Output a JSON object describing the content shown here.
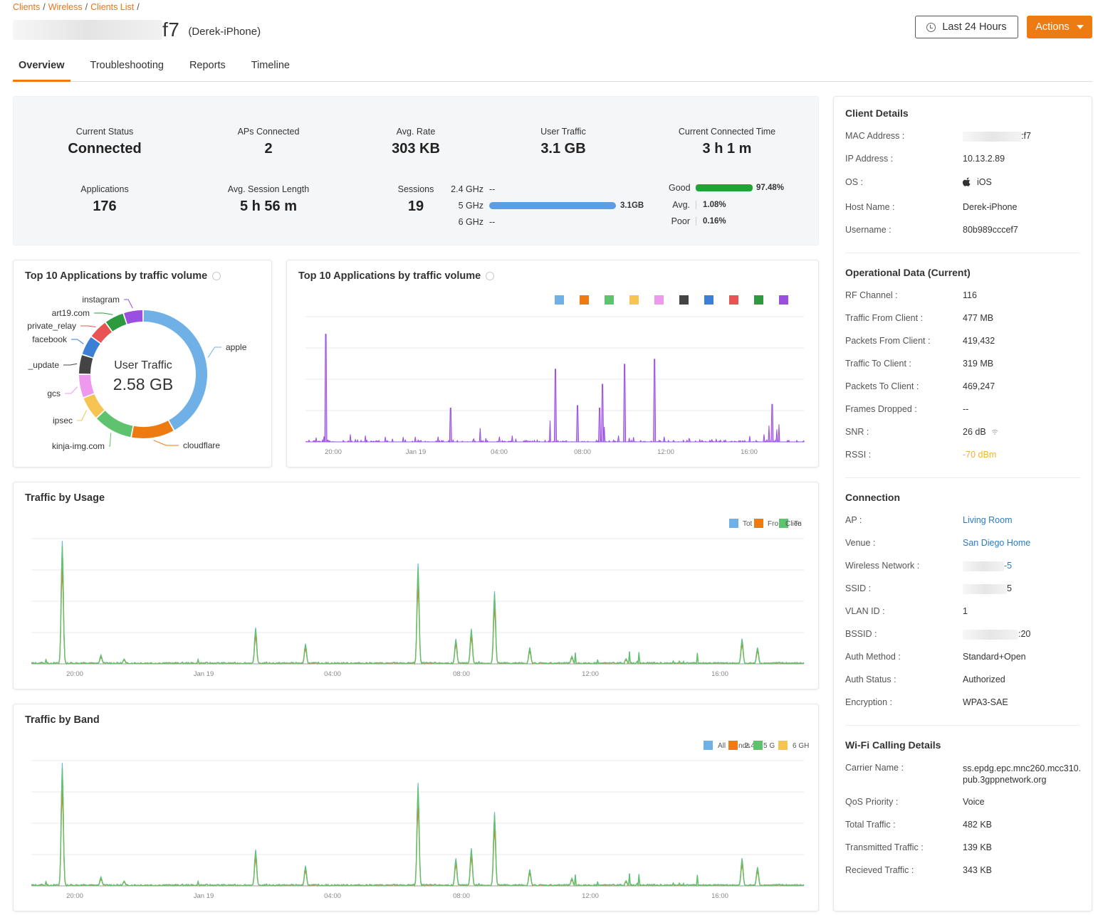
{
  "breadcrumb": {
    "items": [
      "Clients",
      "Wireless",
      "Clients List"
    ],
    "sep": "/"
  },
  "header": {
    "mac_suffix": "f7",
    "host_paren": "(Derek-iPhone)",
    "range_label": "Last 24 Hours",
    "actions_label": "Actions"
  },
  "tabs": [
    "Overview",
    "Troubleshooting",
    "Reports",
    "Timeline"
  ],
  "summary": {
    "current_status": {
      "label": "Current Status",
      "value": "Connected"
    },
    "aps_connected": {
      "label": "APs Connected",
      "value": "2"
    },
    "avg_rate": {
      "label": "Avg. Rate",
      "value": "303 KB"
    },
    "user_traffic": {
      "label": "User Traffic",
      "value": "3.1 GB"
    },
    "connected_time": {
      "label": "Current Connected Time",
      "value": "3 h 1 m"
    },
    "applications": {
      "label": "Applications",
      "value": "176"
    },
    "avg_session": {
      "label": "Avg. Session Length",
      "value": "5 h 56 m"
    },
    "sessions": {
      "label": "Sessions",
      "value": "19"
    },
    "bands": [
      {
        "name": "2.4 GHz",
        "value": "--",
        "fraction": 0
      },
      {
        "name": "5 GHz",
        "value": "3.1GB",
        "fraction": 1
      },
      {
        "name": "6 GHz",
        "value": "--",
        "fraction": 0
      }
    ],
    "quality": [
      {
        "name": "Good",
        "value": "97.48%"
      },
      {
        "name": "Avg.",
        "value": "1.08%"
      },
      {
        "name": "Poor",
        "value": "0.16%"
      }
    ]
  },
  "donut_card": {
    "title": "Top 10 Applications by traffic volume",
    "center_label": "User Traffic",
    "center_value": "2.58 GB"
  },
  "app_chart_card": {
    "title": "Top 10 Applications by traffic volume"
  },
  "usage_card": {
    "title": "Traffic by Usage",
    "legend": [
      "Tot",
      "Fro",
      "Clien",
      "Te"
    ]
  },
  "band_card": {
    "title": "Traffic by Band",
    "legend": [
      "All",
      "Ba",
      "nds",
      "2.4",
      "5 G",
      "Hz",
      "6 GH"
    ]
  },
  "colors": {
    "accent": "#ee7a12",
    "apple": "#6fb1e6",
    "cloudflare": "#ee7a12",
    "kinja": "#5fc26e",
    "ipsec": "#f5c452",
    "gcs": "#ee99ee",
    "update": "#444444",
    "facebook": "#3b7fd6",
    "private_relay": "#e85353",
    "art19": "#2e9a3f",
    "instagram": "#9b4fe0"
  },
  "chart_data": [
    {
      "type": "pie",
      "title": "Top 10 Applications by traffic volume",
      "labels": [
        "apple",
        "cloudflare",
        "kinja-img.com",
        "ipsec",
        "gcs",
        "_update",
        "facebook",
        "private_relay",
        "art19.com",
        "instagram"
      ],
      "values": [
        42,
        11,
        10,
        6,
        6,
        5,
        5,
        5,
        5,
        5
      ],
      "center": "2.58 GB"
    },
    {
      "type": "bar",
      "title": "Top 10 Applications by traffic volume",
      "x_ticks": [
        "20:00",
        "Jan 19",
        "04:00",
        "08:00",
        "12:00",
        "16:00"
      ],
      "legend_colors": [
        "#6fb1e6",
        "#ee7a12",
        "#5fc26e",
        "#f5c452",
        "#ee99ee",
        "#444444",
        "#3b7fd6",
        "#e85353",
        "#2e9a3f",
        "#9b4fe0"
      ],
      "peaks": [
        {
          "t": 0.04,
          "v": 0.86
        },
        {
          "t": 0.09,
          "v": 0.06
        },
        {
          "t": 0.12,
          "v": 0.05
        },
        {
          "t": 0.16,
          "v": 0.04
        },
        {
          "t": 0.29,
          "v": 0.27
        },
        {
          "t": 0.35,
          "v": 0.11
        },
        {
          "t": 0.49,
          "v": 0.17
        },
        {
          "t": 0.5,
          "v": 0.58
        },
        {
          "t": 0.545,
          "v": 0.29
        },
        {
          "t": 0.59,
          "v": 0.27
        },
        {
          "t": 0.595,
          "v": 0.46
        },
        {
          "t": 0.6,
          "v": 0.12
        },
        {
          "t": 0.64,
          "v": 0.62
        },
        {
          "t": 0.7,
          "v": 0.66
        },
        {
          "t": 0.72,
          "v": 0.04
        },
        {
          "t": 0.77,
          "v": 0.03
        },
        {
          "t": 0.92,
          "v": 0.06
        },
        {
          "t": 0.93,
          "v": 0.13
        },
        {
          "t": 0.935,
          "v": 0.3
        },
        {
          "t": 0.945,
          "v": 0.1
        },
        {
          "t": 0.95,
          "v": 0.14
        }
      ]
    },
    {
      "type": "line",
      "title": "Traffic by Usage",
      "x_ticks": [
        "20:00",
        "Jan 19",
        "04:00",
        "08:00",
        "12:00",
        "16:00"
      ],
      "series": [
        {
          "name": "Tot",
          "color": "#6fb1e6"
        },
        {
          "name": "Fro",
          "color": "#ee7a12"
        },
        {
          "name": "Clien",
          "color": "#5fc26e"
        }
      ],
      "peaks": [
        {
          "t": 0.04,
          "v": 0.98
        },
        {
          "t": 0.09,
          "v": 0.07
        },
        {
          "t": 0.12,
          "v": 0.04
        },
        {
          "t": 0.29,
          "v": 0.29
        },
        {
          "t": 0.355,
          "v": 0.16
        },
        {
          "t": 0.5,
          "v": 0.8
        },
        {
          "t": 0.55,
          "v": 0.2
        },
        {
          "t": 0.57,
          "v": 0.28
        },
        {
          "t": 0.6,
          "v": 0.25
        },
        {
          "t": 0.6,
          "v": 0.58
        },
        {
          "t": 0.645,
          "v": 0.13
        },
        {
          "t": 0.7,
          "v": 0.06
        },
        {
          "t": 0.77,
          "v": 0.04
        },
        {
          "t": 0.92,
          "v": 0.2
        },
        {
          "t": 0.94,
          "v": 0.13
        }
      ]
    },
    {
      "type": "line",
      "title": "Traffic by Band",
      "x_ticks": [
        "20:00",
        "Jan 19",
        "04:00",
        "08:00",
        "12:00",
        "16:00"
      ],
      "series": [
        {
          "name": "All",
          "color": "#6fb1e6"
        },
        {
          "name": "Ba",
          "color": "#ee7a12"
        },
        {
          "name": "5 G",
          "color": "#5fc26e"
        },
        {
          "name": "6 GH",
          "color": "#f5c452"
        }
      ],
      "peaks": [
        {
          "t": 0.04,
          "v": 0.98
        },
        {
          "t": 0.09,
          "v": 0.07
        },
        {
          "t": 0.12,
          "v": 0.04
        },
        {
          "t": 0.29,
          "v": 0.29
        },
        {
          "t": 0.355,
          "v": 0.16
        },
        {
          "t": 0.5,
          "v": 0.82
        },
        {
          "t": 0.55,
          "v": 0.22
        },
        {
          "t": 0.57,
          "v": 0.3
        },
        {
          "t": 0.6,
          "v": 0.25
        },
        {
          "t": 0.6,
          "v": 0.59
        },
        {
          "t": 0.645,
          "v": 0.13
        },
        {
          "t": 0.7,
          "v": 0.06
        },
        {
          "t": 0.77,
          "v": 0.04
        },
        {
          "t": 0.92,
          "v": 0.22
        },
        {
          "t": 0.94,
          "v": 0.15
        }
      ]
    }
  ],
  "client_details": {
    "title": "Client Details",
    "rows": [
      {
        "k": "MAC Address :",
        "v": ":f7"
      },
      {
        "k": "IP Address :",
        "v": "10.13.2.89"
      },
      {
        "k": "OS :",
        "v": "iOS"
      },
      {
        "k": "Host Name :",
        "v": "Derek-iPhone"
      },
      {
        "k": "Username :",
        "v": "80b989cccef7"
      }
    ]
  },
  "operational": {
    "title": "Operational Data (Current)",
    "rows": [
      {
        "k": "RF Channel :",
        "v": "116"
      },
      {
        "k": "Traffic From Client :",
        "v": "477 MB"
      },
      {
        "k": "Packets From Client :",
        "v": "419,432"
      },
      {
        "k": "Traffic To Client :",
        "v": "319 MB"
      },
      {
        "k": "Packets To Client :",
        "v": "469,247"
      },
      {
        "k": "Frames Dropped :",
        "v": "--"
      },
      {
        "k": "SNR :",
        "v": "26 dB"
      },
      {
        "k": "RSSI :",
        "v": "-70 dBm"
      }
    ]
  },
  "connection": {
    "title": "Connection",
    "rows": [
      {
        "k": "AP :",
        "v": "Living Room"
      },
      {
        "k": "Venue :",
        "v": "San Diego Home"
      },
      {
        "k": "Wireless Network :",
        "v": "-5"
      },
      {
        "k": "SSID :",
        "v": "5"
      },
      {
        "k": "VLAN ID :",
        "v": "1"
      },
      {
        "k": "BSSID :",
        "v": ":20"
      },
      {
        "k": "Auth Method :",
        "v": "Standard+Open"
      },
      {
        "k": "Auth Status :",
        "v": "Authorized"
      },
      {
        "k": "Encryption :",
        "v": "WPA3-SAE"
      }
    ]
  },
  "wifi_calling": {
    "title": "Wi-Fi Calling Details",
    "rows": [
      {
        "k": "Carrier Name :",
        "v": "ss.epdg.epc.mnc260.mcc310.",
        "v2": "pub.3gppnetwork.org"
      },
      {
        "k": "QoS Priority :",
        "v": "Voice"
      },
      {
        "k": "Total Traffic :",
        "v": "482 KB"
      },
      {
        "k": "Transmitted Traffic :",
        "v": "139 KB"
      },
      {
        "k": "Recieved Traffic :",
        "v": "343 KB"
      }
    ]
  }
}
